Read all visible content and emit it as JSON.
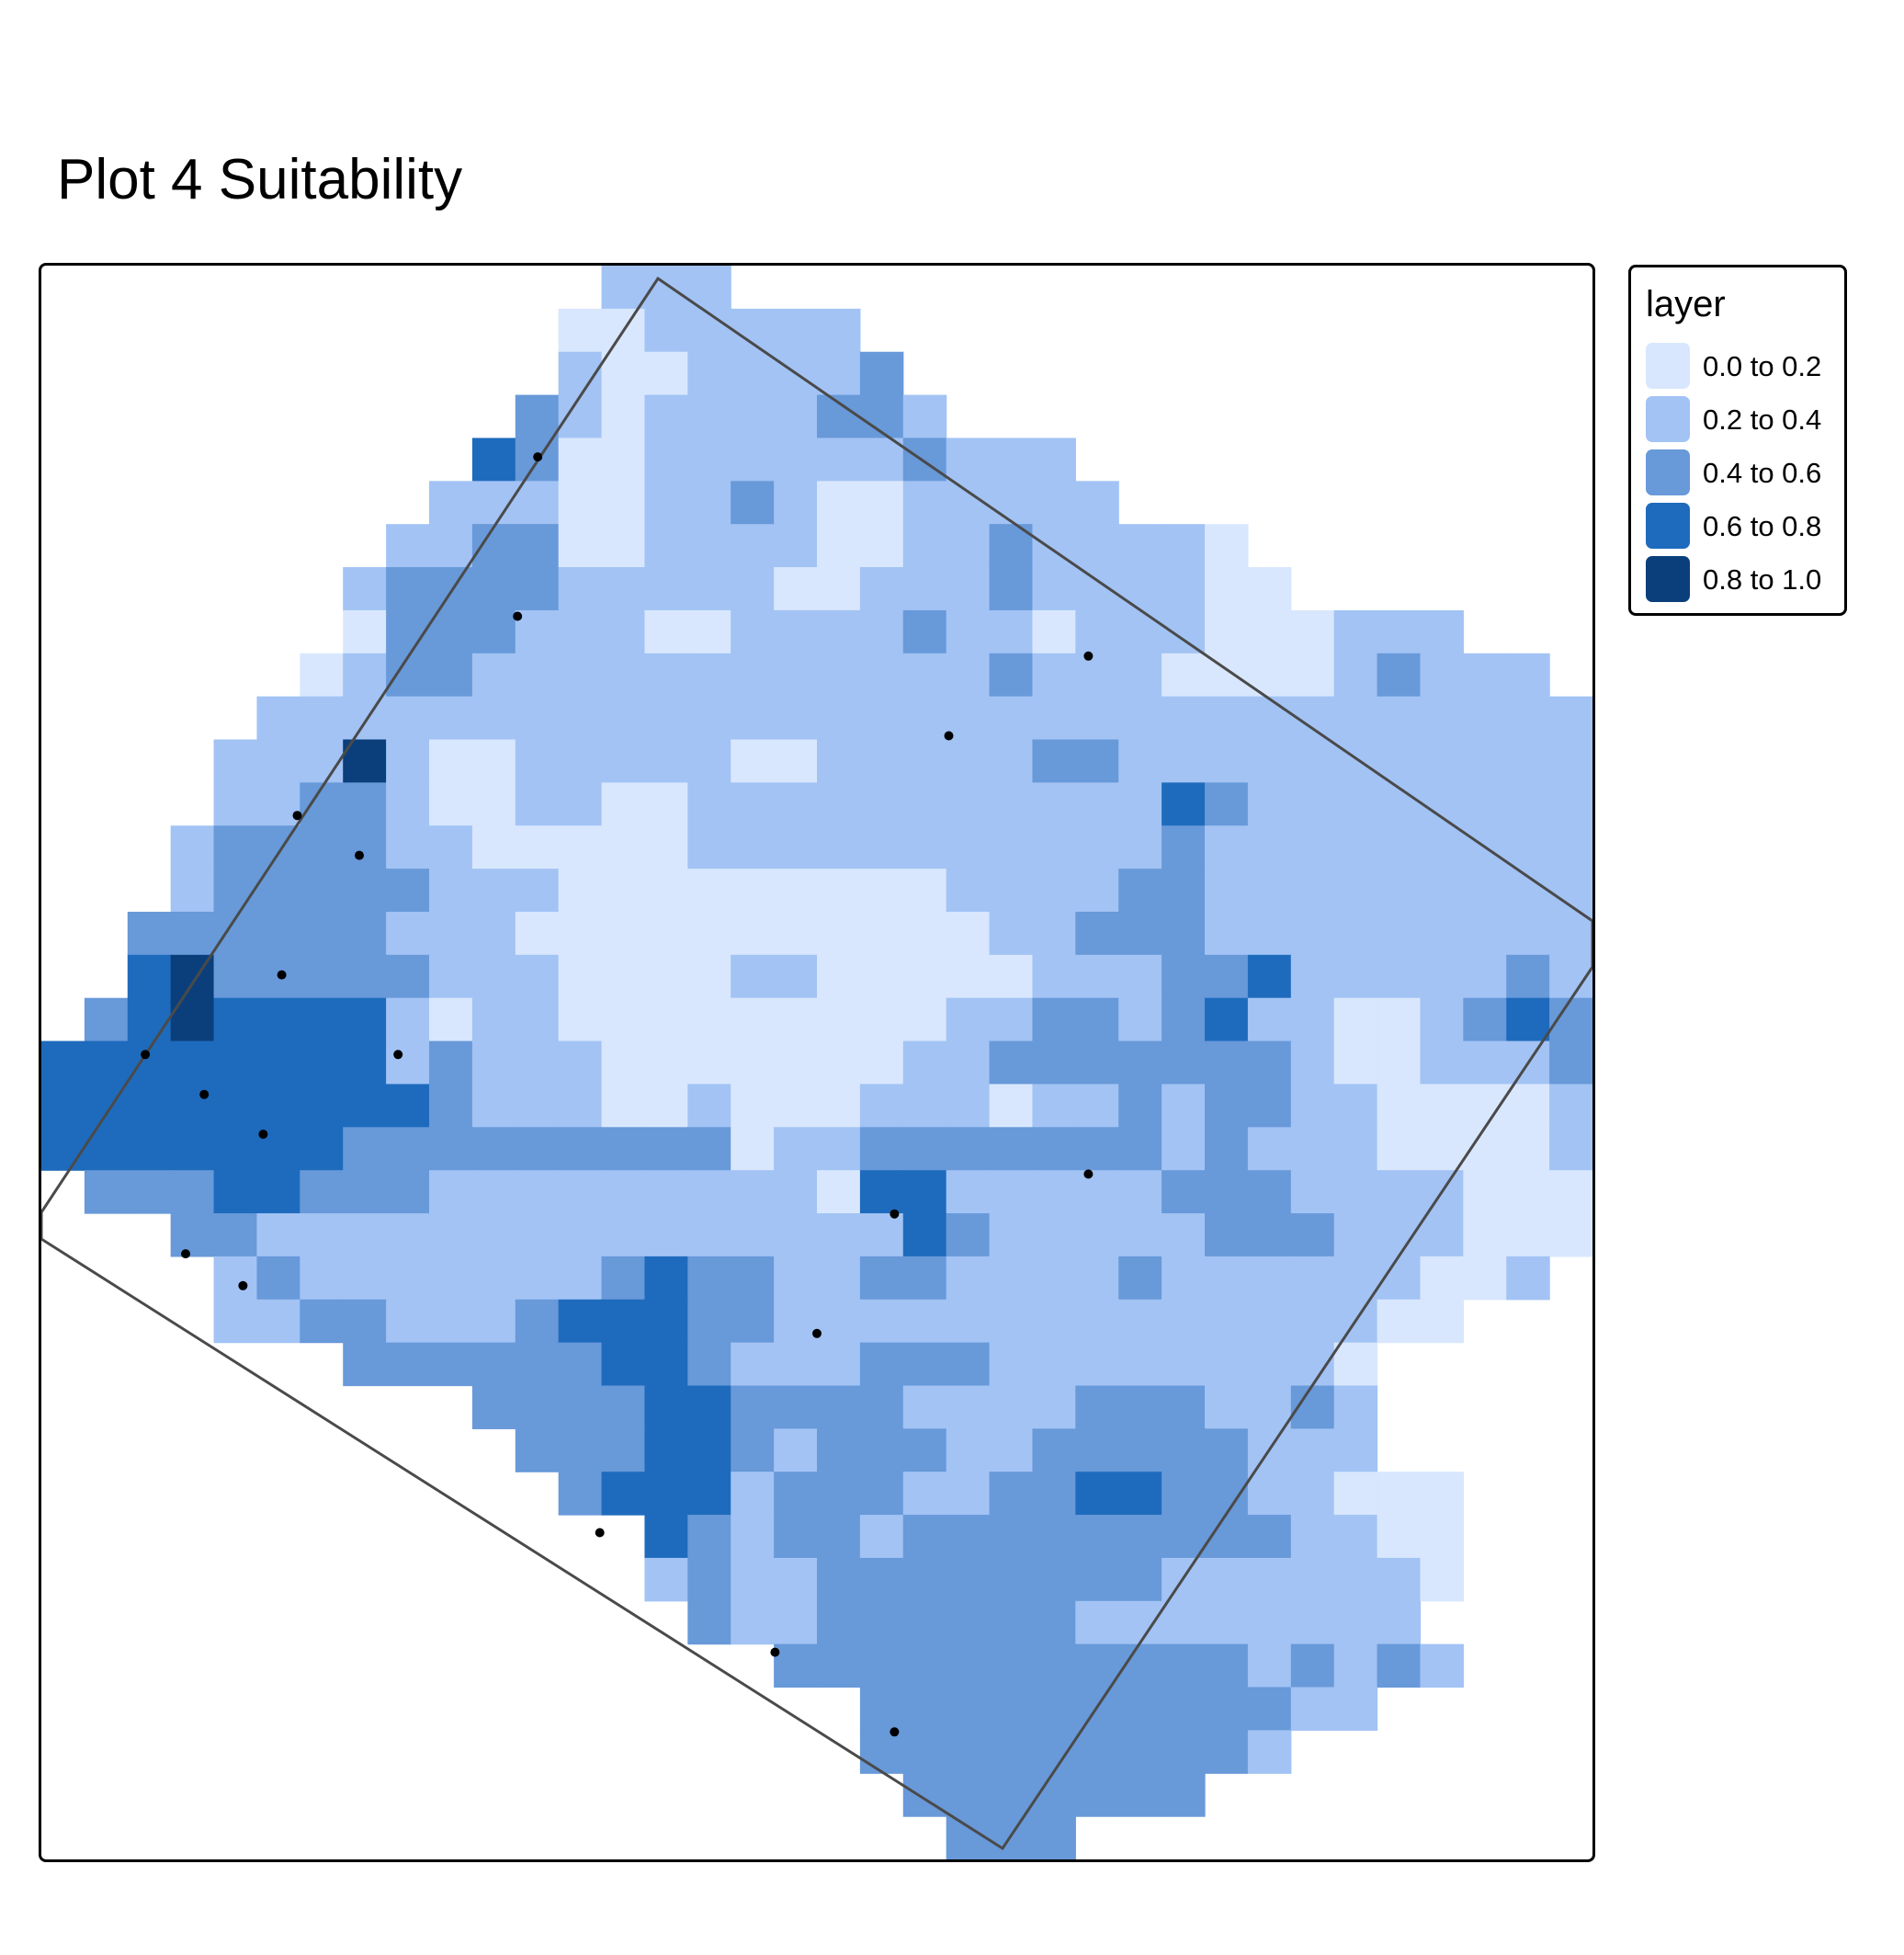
{
  "title": "Plot 4 Suitability",
  "legend": {
    "title": "layer",
    "items": [
      {
        "label": "0.0 to 0.2",
        "color": "#d8e7fd"
      },
      {
        "label": "0.2 to 0.4",
        "color": "#a2c3f4"
      },
      {
        "label": "0.4 to 0.6",
        "color": "#6899d9"
      },
      {
        "label": "0.6 to 0.8",
        "color": "#1e6bbd"
      },
      {
        "label": "0.8 to 1.0",
        "color": "#0a3f7b"
      }
    ]
  },
  "map": {
    "grid": {
      "cols": 36,
      "rows": 37,
      "class_codes": "0 = 0.0 to 0.2, 1 = 0.2 to 0.4, 2 = 0.4 to 0.6, 3 = 0.6 to 0.8, 4 = 0.8 to 1.0, . = no data",
      "cells": [
        ".............111....................",
        "............0011111.................",
        "............10011112................",
        "...........2101111221...............",
        "..........32001111112111............",
        ".........1110011210011111...........",
        "........11220011110011211110........",
        ".......1222211111001112111100.......",
        ".......02221110011112110111000111...",
        "......01221111111111112111000012111.",
        ".....1111111111111111111111111111111",
        "....11141001111100111112211111111111",
        "....11221001100111111111113211111111",
        "...1222211000001111111111121111111111",
        "...1222221110000000001111221111111111",
        "..2222221110000000000011222111111111.",
        "..3422222111000011000001112231111121.",
        ".23433331011000000000112212311001232.",
        "333333331211100000001122222221001112.",
        "33333333321110010001110112122110000112.",
        "3333333222222222011222222212111000011.",
        ".22233222111111111033111112221111000.",
        "...221111111111111113211111222111000.",
        "....1211111112322112211112111111001..",
        "....11221112333221111111111111100....",
        ".......222222332111222111111110......",
        "..........222233222211112221121......",
        "...........22233212221122222111......",
        "............233312221122332211000....",
        "..............3212212222222221100....",
        "..............1211222222221111110....",
        "...............21122222211111111.....",
        ".................2222222222212121....",
        "...................222222222211.....",
        "...................2222222221.......",
        "....................2222222.........",
        ".....................222............"
      ]
    },
    "boundary_shape": "rotated-rectangle",
    "points_count_note": "",
    "points": [
      {
        "x": 0.32,
        "y": 0.12
      },
      {
        "x": 0.307,
        "y": 0.22
      },
      {
        "x": 0.675,
        "y": 0.245
      },
      {
        "x": 0.585,
        "y": 0.295
      },
      {
        "x": 0.165,
        "y": 0.345
      },
      {
        "x": 0.205,
        "y": 0.37
      },
      {
        "x": 0.155,
        "y": 0.445
      },
      {
        "x": 0.067,
        "y": 0.495
      },
      {
        "x": 0.23,
        "y": 0.495
      },
      {
        "x": 0.105,
        "y": 0.52
      },
      {
        "x": 0.143,
        "y": 0.545
      },
      {
        "x": 0.675,
        "y": 0.57
      },
      {
        "x": 0.55,
        "y": 0.595
      },
      {
        "x": 0.093,
        "y": 0.62
      },
      {
        "x": 0.13,
        "y": 0.64
      },
      {
        "x": 0.5,
        "y": 0.67
      },
      {
        "x": 0.36,
        "y": 0.795
      },
      {
        "x": 0.473,
        "y": 0.87
      },
      {
        "x": 0.55,
        "y": 0.92
      }
    ]
  }
}
